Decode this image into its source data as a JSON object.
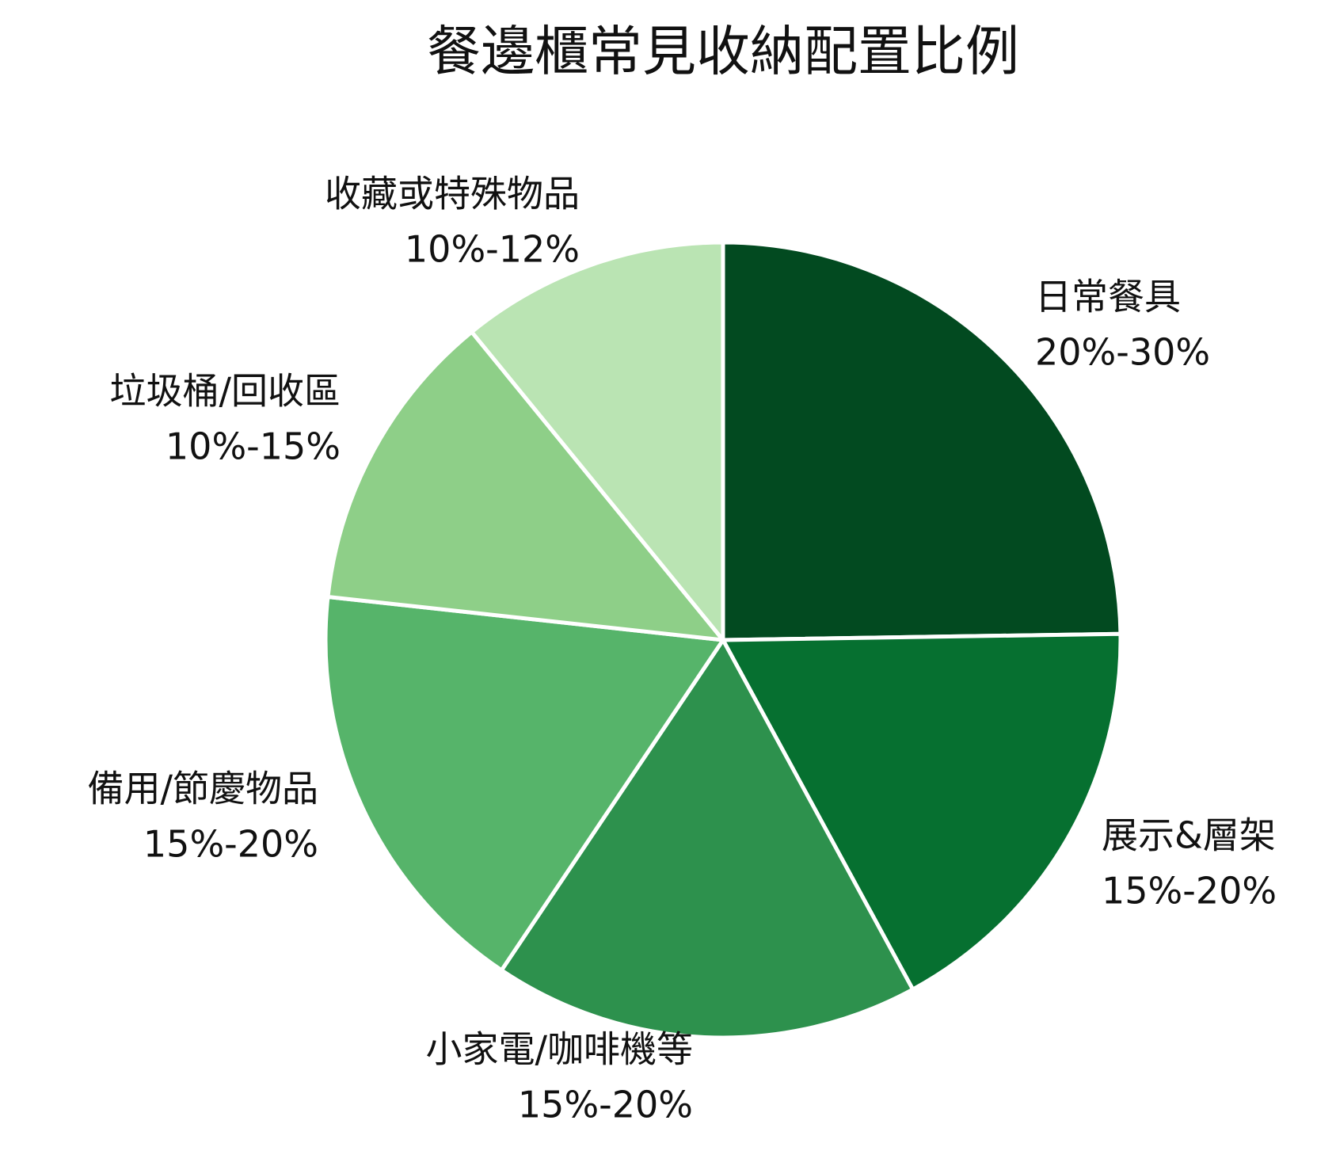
{
  "chart_data": {
    "type": "pie",
    "title": "餐邊櫃常見收納配置比例",
    "categories": [
      "日常餐具",
      "展示&層架",
      "小家電/咖啡機等",
      "備用/節慶物品",
      "垃圾桶/回收區",
      "收藏或特殊物品"
    ],
    "values": [
      25,
      17.5,
      17.5,
      17.5,
      12.5,
      11
    ],
    "value_labels": [
      "20%-30%",
      "15%-20%",
      "15%-20%",
      "15%-20%",
      "10%-15%",
      "10%-12%"
    ],
    "colors": [
      "#024a20",
      "#067030",
      "#2d914d",
      "#56b46a",
      "#8ecf88",
      "#bae4b3"
    ]
  }
}
